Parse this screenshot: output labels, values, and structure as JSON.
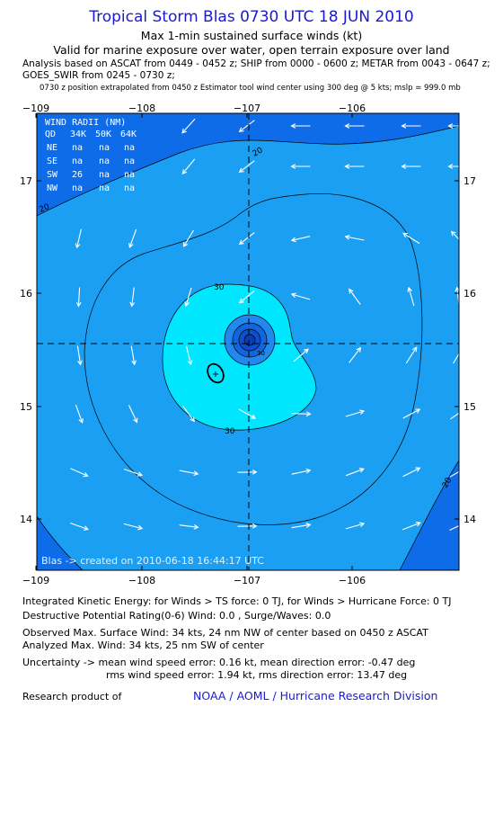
{
  "header": {
    "title": "Tropical Storm Blas 0730 UTC 18 JUN 2010",
    "subtitle": "Max 1-min sustained surface winds (kt)",
    "valid": "Valid for marine exposure over water, open terrain exposure over land",
    "analysis_line1": "Analysis based on  ASCAT from 0449 - 0452 z;  SHIP from 0000 - 0600 z;  METAR from 0043 - 0647 z;",
    "analysis_line2": "GOES_SWIR from 0245 - 0730 z;",
    "position_note": "0730 z position extrapolated from 0450 z Estimator tool wind center using 300 deg @ 5 kts; mslp = 999.0 mb"
  },
  "map": {
    "lon_ticks": [
      "−109",
      "−108",
      "−107",
      "−106"
    ],
    "lat_ticks": [
      "17",
      "16",
      "15",
      "14"
    ],
    "contour_labels": [
      "20",
      "20",
      "30",
      "30",
      "30",
      "20"
    ],
    "credit": "Blas -> created on 2010-06-18 16:44:17 UTC",
    "colors": {
      "band_lt20": "#0f6ce9",
      "band_20_30": "#1a9ff3",
      "band_30_40": "#00e6ff",
      "band_core1": "#2288ee",
      "band_core2": "#1166dd",
      "band_core3": "#0e50cc",
      "band_core4": "#0a3cb4"
    },
    "wind_radii": {
      "header": [
        "WIND RADII (NM)"
      ],
      "columns": [
        "QD",
        "34K",
        "50K",
        "64K"
      ],
      "rows": [
        [
          "NE",
          "na",
          "na",
          "na"
        ],
        [
          "SE",
          "na",
          "na",
          "na"
        ],
        [
          "SW",
          "26",
          "na",
          "na"
        ],
        [
          "NW",
          "na",
          "na",
          "na"
        ]
      ]
    }
  },
  "footer": {
    "ike": "Integrated Kinetic Energy:  for Winds > TS force: 0 TJ,  for Winds > Hurricane Force: 0 TJ",
    "dpr": "Destructive Potential Rating(0-6)   Wind: 0.0 , Surge/Waves: 0.0",
    "obs_max": "Observed Max. Surface Wind: 34 kts, 24 nm NW of center based on 0450 z ASCAT",
    "ana_max": "Analyzed Max. Wind: 34 kts, 25 nm SW of center",
    "unc1": "Uncertainty -> mean wind speed error: 0.16 kt,   mean direction error:  -0.47 deg",
    "unc2": "rms wind speed error: 1.94 kt,   rms direction error: 13.47 deg",
    "research": "Research product of",
    "noaa": "NOAA / AOML / Hurricane Research Division"
  }
}
